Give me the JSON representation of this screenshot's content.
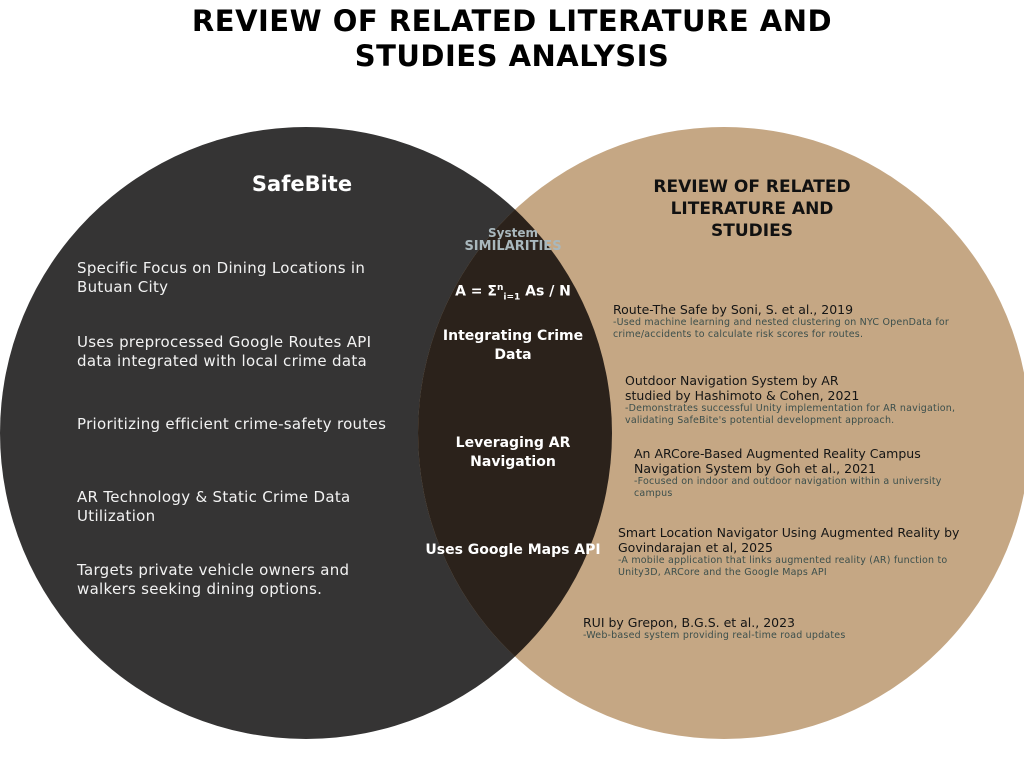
{
  "title_lines": [
    "REVIEW OF RELATED LITERATURE AND",
    "STUDIES ANALYSIS"
  ],
  "colors": {
    "left_circle": "#353434",
    "right_circle": "#c5a784",
    "overlap": "#2b221b",
    "description_text": "#3c4f4c"
  },
  "left": {
    "title": "SafeBite",
    "items": [
      "Specific Focus on Dining Locations in Butuan City",
      "Uses preprocessed Google Routes API data integrated with local crime data",
      "Prioritizing efficient crime-safety routes",
      "AR Technology & Static Crime Data Utilization",
      "Targets private vehicle owners and walkers seeking dining options."
    ]
  },
  "middle": {
    "label_top": "System",
    "label_bottom": "SIMILARITIES",
    "formula": {
      "lhs": "A = Σ",
      "sup": "n",
      "sub": "i=1",
      "rhs": " As / N"
    },
    "items": [
      "Integrating Crime Data",
      "Leveraging AR Navigation",
      "Uses Google Maps API"
    ]
  },
  "right": {
    "title": "REVIEW OF RELATED LITERATURE AND STUDIES",
    "items": [
      {
        "heading": "Route-The Safe by Soni, S. et al., 2019",
        "description": "-Used machine learning and nested clustering on NYC OpenData for crime/accidents to calculate risk scores for routes."
      },
      {
        "heading": "Outdoor Navigation System by AR studied by Hashimoto & Cohen, 2021",
        "description": "-Demonstrates successful Unity implementation for AR navigation, validating SafeBite's potential development approach."
      },
      {
        "heading": "An ARCore-Based Augmented Reality Campus Navigation System by Goh et al., 2021",
        "description": "-Focused on indoor and outdoor navigation within a university campus"
      },
      {
        "heading": "Smart Location Navigator Using Augmented Reality by Govindarajan et al, 2025",
        "description": "-A mobile application that links augmented reality (AR) function to Unity3D, ARCore and the Google Maps API"
      },
      {
        "heading": "RUI by Grepon, B.G.S. et al., 2023",
        "description": "-Web-based system providing real-time road updates"
      }
    ]
  }
}
